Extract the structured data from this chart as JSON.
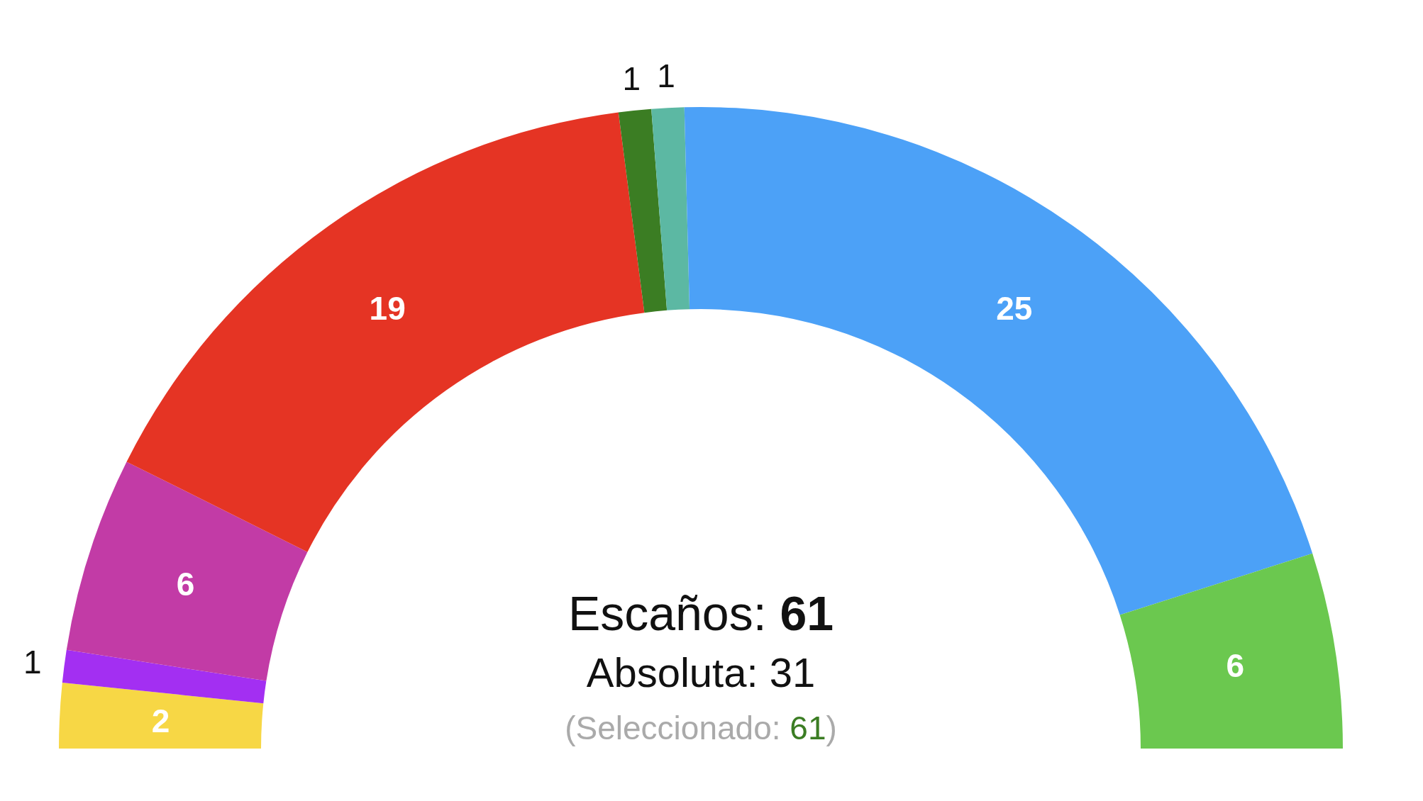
{
  "chart_data": {
    "type": "donut",
    "categories": [
      null,
      null,
      null,
      null,
      null,
      null,
      null,
      null
    ],
    "values": [
      2,
      1,
      6,
      19,
      1,
      1,
      25,
      6
    ],
    "colors": [
      "#f7d745",
      "#a32ff2",
      "#c23ba6",
      "#e53424",
      "#3b7d23",
      "#5cb8a3",
      "#4ca1f7",
      "#6bc84f"
    ],
    "data_labels": true,
    "annotations": [
      "Escaños: 61",
      "Absoluta: 31",
      "(Seleccionado: 61)"
    ]
  }
}
